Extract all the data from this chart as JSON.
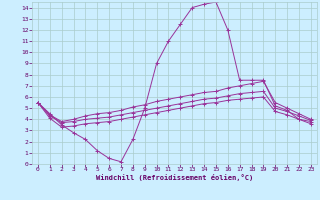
{
  "xlabel": "Windchill (Refroidissement éolien,°C)",
  "bg_color": "#cceeff",
  "line_color": "#993399",
  "grid_color": "#aacccc",
  "axis_color": "#660066",
  "xlim": [
    -0.5,
    23.5
  ],
  "ylim": [
    0,
    14.5
  ],
  "xticks": [
    0,
    1,
    2,
    3,
    4,
    5,
    6,
    7,
    8,
    9,
    10,
    11,
    12,
    13,
    14,
    15,
    16,
    17,
    18,
    19,
    20,
    21,
    22,
    23
  ],
  "yticks": [
    0,
    1,
    2,
    3,
    4,
    5,
    6,
    7,
    8,
    9,
    10,
    11,
    12,
    13,
    14
  ],
  "series": [
    [
      5.5,
      4.5,
      3.5,
      2.8,
      2.2,
      1.2,
      0.5,
      0.2,
      2.2,
      5.0,
      9.0,
      11.0,
      12.5,
      14.0,
      14.3,
      14.5,
      12.0,
      7.5,
      7.5,
      7.5,
      5.2,
      4.8,
      4.0,
      3.8
    ],
    [
      5.5,
      4.4,
      3.8,
      4.0,
      4.3,
      4.5,
      4.6,
      4.8,
      5.1,
      5.3,
      5.6,
      5.8,
      6.0,
      6.2,
      6.4,
      6.5,
      6.8,
      7.0,
      7.2,
      7.4,
      5.5,
      5.0,
      4.5,
      4.0
    ],
    [
      5.5,
      4.3,
      3.7,
      3.8,
      4.0,
      4.1,
      4.2,
      4.4,
      4.6,
      4.8,
      5.0,
      5.2,
      5.4,
      5.6,
      5.8,
      5.9,
      6.1,
      6.3,
      6.4,
      6.5,
      5.0,
      4.7,
      4.3,
      3.9
    ],
    [
      5.5,
      4.1,
      3.3,
      3.4,
      3.6,
      3.7,
      3.8,
      4.0,
      4.2,
      4.4,
      4.6,
      4.8,
      5.0,
      5.2,
      5.4,
      5.5,
      5.7,
      5.8,
      5.9,
      6.0,
      4.7,
      4.4,
      4.0,
      3.6
    ]
  ]
}
